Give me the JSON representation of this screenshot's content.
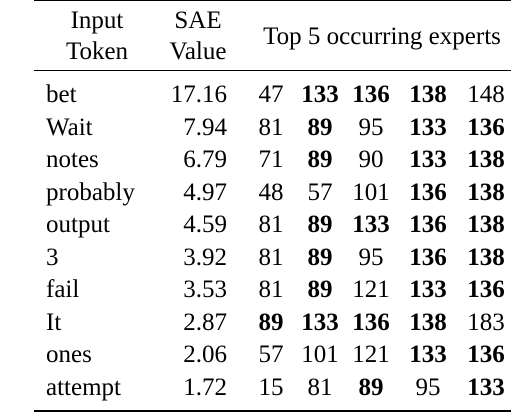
{
  "header": {
    "col1": [
      "Input",
      "Token"
    ],
    "col2": [
      "SAE",
      "Value"
    ],
    "col3": "Top 5 occurring experts"
  },
  "rows": [
    {
      "token": "bet",
      "sae": "17.16",
      "experts": [
        {
          "v": "47",
          "b": false
        },
        {
          "v": "133",
          "b": true
        },
        {
          "v": "136",
          "b": true
        },
        {
          "v": "138",
          "b": true
        },
        {
          "v": "148",
          "b": false
        }
      ]
    },
    {
      "token": "Wait",
      "sae": "7.94",
      "experts": [
        {
          "v": "81",
          "b": false
        },
        {
          "v": "89",
          "b": true
        },
        {
          "v": "95",
          "b": false
        },
        {
          "v": "133",
          "b": true
        },
        {
          "v": "136",
          "b": true
        }
      ]
    },
    {
      "token": "notes",
      "sae": "6.79",
      "experts": [
        {
          "v": "71",
          "b": false
        },
        {
          "v": "89",
          "b": true
        },
        {
          "v": "90",
          "b": false
        },
        {
          "v": "133",
          "b": true
        },
        {
          "v": "138",
          "b": true
        }
      ]
    },
    {
      "token": "probably",
      "sae": "4.97",
      "experts": [
        {
          "v": "48",
          "b": false
        },
        {
          "v": "57",
          "b": false
        },
        {
          "v": "101",
          "b": false
        },
        {
          "v": "136",
          "b": true
        },
        {
          "v": "138",
          "b": true
        }
      ]
    },
    {
      "token": "output",
      "sae": "4.59",
      "experts": [
        {
          "v": "81",
          "b": false
        },
        {
          "v": "89",
          "b": true
        },
        {
          "v": "133",
          "b": true
        },
        {
          "v": "136",
          "b": true
        },
        {
          "v": "138",
          "b": true
        }
      ]
    },
    {
      "token": "3",
      "sae": "3.92",
      "experts": [
        {
          "v": "81",
          "b": false
        },
        {
          "v": "89",
          "b": true
        },
        {
          "v": "95",
          "b": false
        },
        {
          "v": "136",
          "b": true
        },
        {
          "v": "138",
          "b": true
        }
      ]
    },
    {
      "token": "fail",
      "sae": "3.53",
      "experts": [
        {
          "v": "81",
          "b": false
        },
        {
          "v": "89",
          "b": true
        },
        {
          "v": "121",
          "b": false
        },
        {
          "v": "133",
          "b": true
        },
        {
          "v": "136",
          "b": true
        }
      ]
    },
    {
      "token": "It",
      "sae": "2.87",
      "experts": [
        {
          "v": "89",
          "b": true
        },
        {
          "v": "133",
          "b": true
        },
        {
          "v": "136",
          "b": true
        },
        {
          "v": "138",
          "b": true
        },
        {
          "v": "183",
          "b": false
        }
      ]
    },
    {
      "token": "ones",
      "sae": "2.06",
      "experts": [
        {
          "v": "57",
          "b": false
        },
        {
          "v": "101",
          "b": false
        },
        {
          "v": "121",
          "b": false
        },
        {
          "v": "133",
          "b": true
        },
        {
          "v": "136",
          "b": true
        }
      ]
    },
    {
      "token": "attempt",
      "sae": "1.72",
      "experts": [
        {
          "v": "15",
          "b": false
        },
        {
          "v": "81",
          "b": false
        },
        {
          "v": "89",
          "b": true
        },
        {
          "v": "95",
          "b": false
        },
        {
          "v": "133",
          "b": true
        }
      ]
    }
  ]
}
